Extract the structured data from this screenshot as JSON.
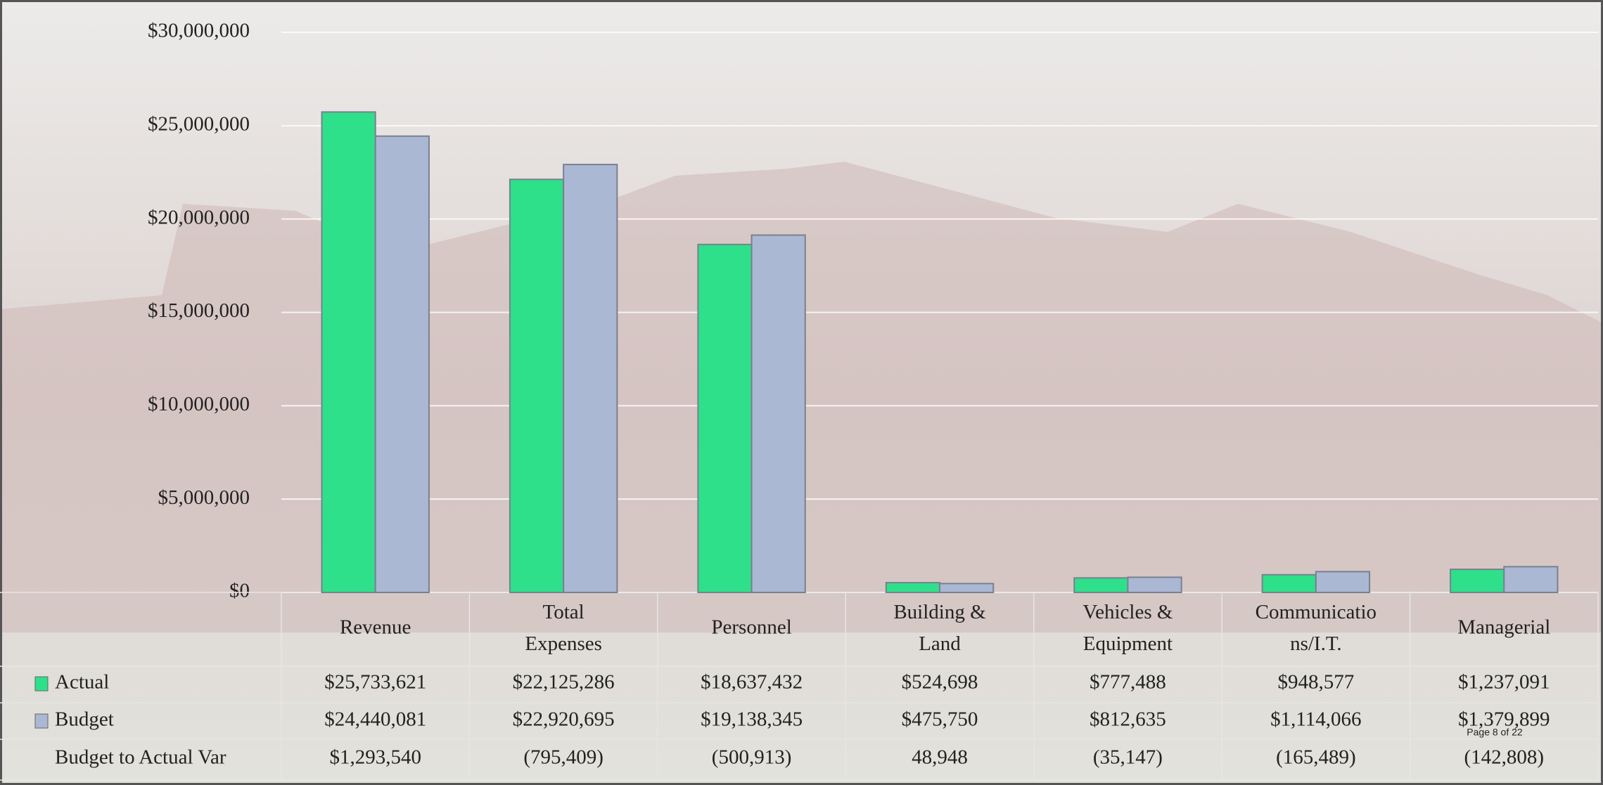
{
  "chart_data": {
    "type": "bar",
    "categories": [
      "Revenue",
      "Total Expenses",
      "Personnel",
      "Building & Land",
      "Vehicles & Equipment",
      "Communicatio ns/I.T.",
      "Managerial"
    ],
    "series": [
      {
        "name": "Actual",
        "color": "#2ee08a",
        "values": [
          25733621,
          22125286,
          18637432,
          524698,
          777488,
          948577,
          1237091
        ],
        "value_labels": [
          "$25,733,621",
          "$22,125,286",
          "$18,637,432",
          "$524,698",
          "$777,488",
          "$948,577",
          "$1,237,091"
        ]
      },
      {
        "name": "Budget",
        "color": "#abb8d3",
        "values": [
          24440081,
          22920695,
          19138345,
          475750,
          812635,
          1114066,
          1379899
        ],
        "value_labels": [
          "$24,440,081",
          "$22,920,695",
          "$19,138,345",
          "$475,750",
          "$812,635",
          "$1,114,066",
          "$1,379,899"
        ]
      }
    ],
    "variance": {
      "name": "Budget to Actual Var",
      "values": [
        1293540,
        -795409,
        -500913,
        48948,
        -35147,
        -165489,
        -142808
      ],
      "value_labels": [
        "$1,293,540",
        "(795,409)",
        "(500,913)",
        "48,948",
        "(35,147)",
        "(165,489)",
        "(142,808)"
      ]
    },
    "ylim": [
      0,
      30000000
    ],
    "yticks": [
      {
        "value": 0,
        "label": "$0"
      },
      {
        "value": 5000000,
        "label": "$5,000,000"
      },
      {
        "value": 10000000,
        "label": "$10,000,000"
      },
      {
        "value": 15000000,
        "label": "$15,000,000"
      },
      {
        "value": 20000000,
        "label": "$20,000,000"
      },
      {
        "value": 25000000,
        "label": "$25,000,000"
      },
      {
        "value": 30000000,
        "label": "$30,000,000"
      }
    ],
    "grid": true,
    "page_label": "Page 8 of 22"
  }
}
